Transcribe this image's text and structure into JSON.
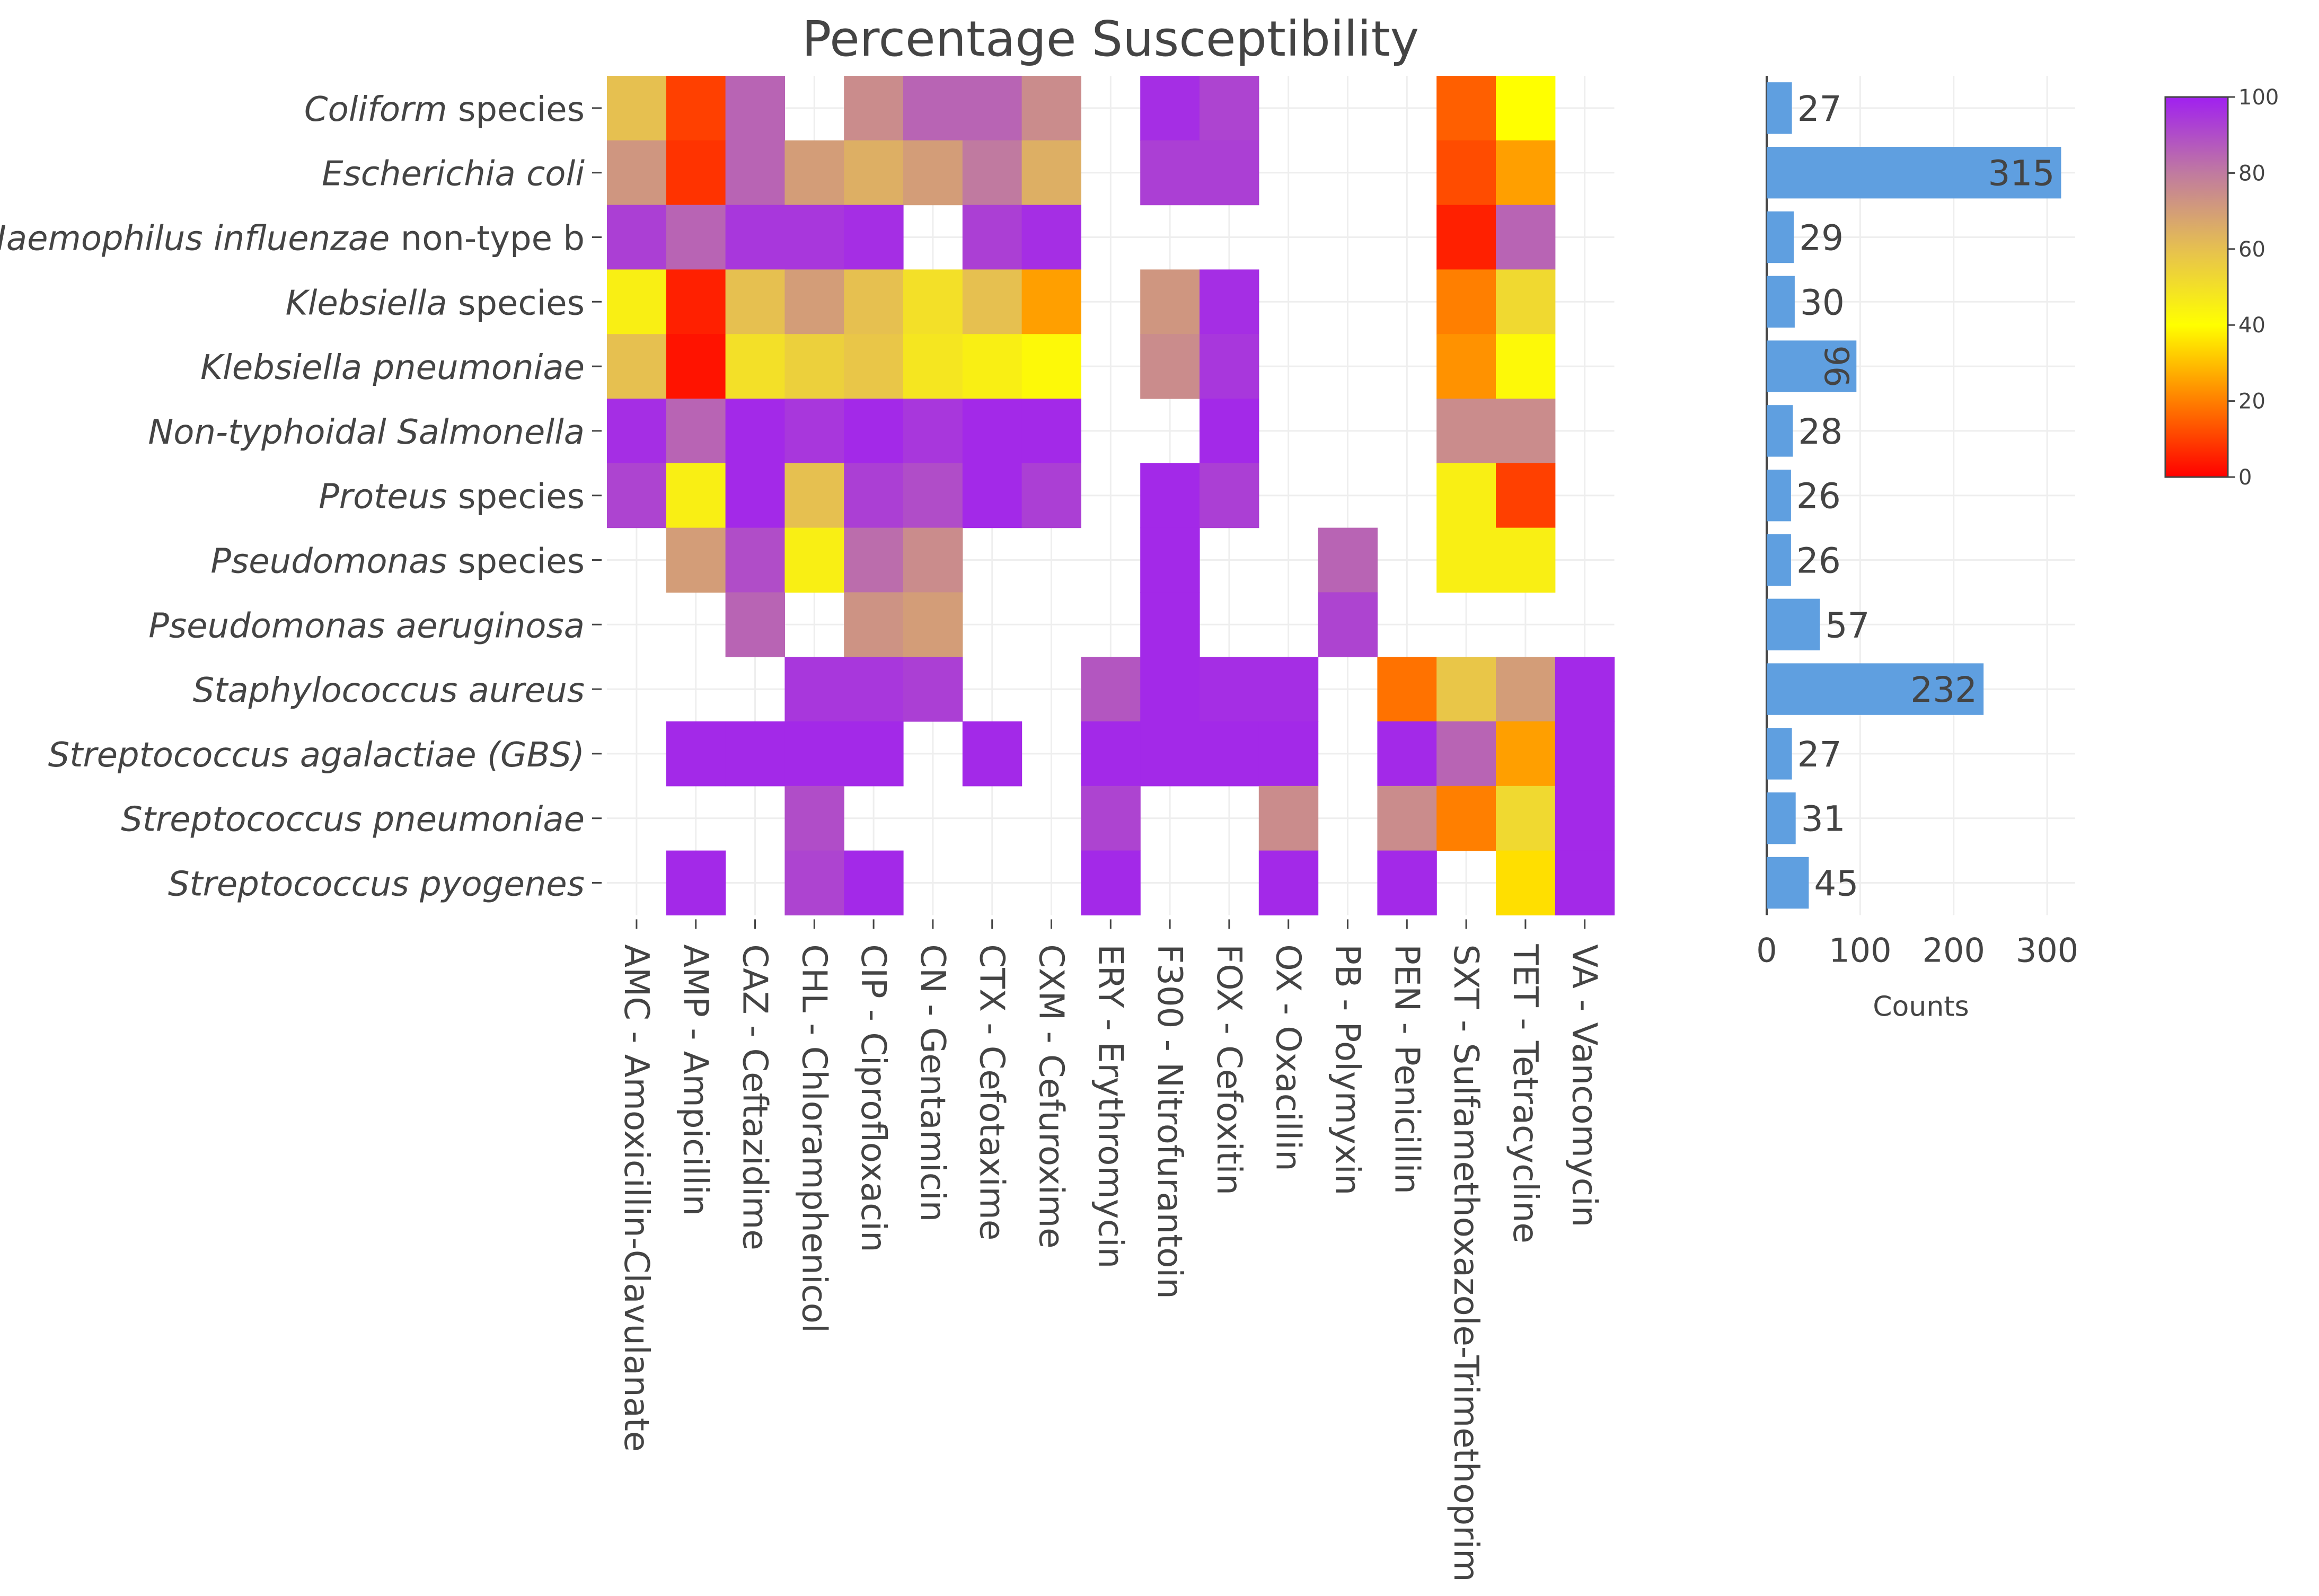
{
  "chart_data": [
    {
      "type": "heatmap",
      "title": "Percentage Susceptibility",
      "y_categories": [
        {
          "italic": "Coliform",
          "rest": " species"
        },
        {
          "italic": "Escherichia coli",
          "rest": ""
        },
        {
          "italic": "Haemophilus influenzae",
          "rest": " non-type b"
        },
        {
          "italic": "Klebsiella",
          "rest": " species"
        },
        {
          "italic": "Klebsiella pneumoniae",
          "rest": ""
        },
        {
          "italic": "Non-typhoidal Salmonella",
          "rest": ""
        },
        {
          "italic": "Proteus",
          "rest": " species"
        },
        {
          "italic": "Pseudomonas",
          "rest": " species"
        },
        {
          "italic": "Pseudomonas aeruginosa",
          "rest": ""
        },
        {
          "italic": "Staphylococcus aureus",
          "rest": ""
        },
        {
          "italic": "Streptococcus agalactiae (GBS)",
          "rest": ""
        },
        {
          "italic": "Streptococcus pneumoniae",
          "rest": ""
        },
        {
          "italic": "Streptococcus pyogenes",
          "rest": ""
        }
      ],
      "x_categories": [
        "AMC - Amoxicillin-Clavulanate",
        "AMP - Ampicillin",
        "CAZ - Ceftazidime",
        "CHL - Chloramphenicol",
        "CIP - Ciprofloxacin",
        "CN - Gentamicin",
        "CTX - Cefotaxime",
        "CXM - Cefuroxime",
        "ERY - Erythromycin",
        "F300 - Nitrofurantoin",
        "FOX - Cefoxitin",
        "OX - Oxacillin",
        "PB - Polymyxin",
        "PEN - Penicillin",
        "SXT - Sulfamethoxazole-Trimethoprim",
        "TET - Tetracycline",
        "VA - Vancomycin"
      ],
      "values": [
        [
          60,
          10,
          85,
          null,
          75,
          85,
          85,
          75,
          null,
          97,
          92,
          null,
          null,
          null,
          15,
          40,
          null
        ],
        [
          72,
          8,
          85,
          70,
          65,
          70,
          80,
          65,
          null,
          93,
          93,
          null,
          null,
          null,
          12,
          25,
          null
        ],
        [
          93,
          85,
          95,
          95,
          97,
          null,
          93,
          97,
          null,
          null,
          null,
          null,
          null,
          null,
          5,
          85,
          null
        ],
        [
          45,
          5,
          60,
          70,
          60,
          50,
          60,
          25,
          null,
          72,
          97,
          null,
          null,
          null,
          20,
          52,
          null
        ],
        [
          60,
          3,
          50,
          55,
          58,
          48,
          45,
          42,
          null,
          75,
          95,
          null,
          null,
          null,
          23,
          42,
          null
        ],
        [
          97,
          85,
          98,
          95,
          98,
          95,
          98,
          98,
          null,
          null,
          98,
          null,
          null,
          null,
          75,
          75,
          null
        ],
        [
          92,
          45,
          98,
          60,
          93,
          90,
          98,
          93,
          null,
          98,
          93,
          null,
          null,
          null,
          45,
          10,
          null
        ],
        [
          null,
          70,
          90,
          45,
          83,
          75,
          null,
          null,
          null,
          98,
          null,
          null,
          85,
          null,
          45,
          45,
          null
        ],
        [
          null,
          null,
          85,
          null,
          73,
          70,
          null,
          null,
          null,
          98,
          null,
          null,
          92,
          null,
          null,
          null,
          null
        ],
        [
          null,
          null,
          null,
          95,
          95,
          93,
          null,
          null,
          88,
          98,
          97,
          97,
          null,
          18,
          58,
          70,
          98
        ],
        [
          null,
          98,
          98,
          98,
          98,
          null,
          98,
          null,
          98,
          98,
          98,
          98,
          null,
          98,
          85,
          25,
          98
        ],
        [
          null,
          null,
          null,
          90,
          null,
          null,
          null,
          null,
          92,
          null,
          null,
          75,
          null,
          75,
          20,
          52,
          98
        ],
        [
          null,
          98,
          null,
          92,
          98,
          null,
          null,
          null,
          98,
          null,
          null,
          98,
          null,
          98,
          null,
          35,
          98
        ]
      ],
      "colorscale": [
        [
          0,
          "#ff0000"
        ],
        [
          0.2,
          "#ff7f00"
        ],
        [
          0.4,
          "#ffff00"
        ],
        [
          0.6,
          "#e6c050"
        ],
        [
          0.8,
          "#c07aa0"
        ],
        [
          1.0,
          "#a020f0"
        ]
      ],
      "colorbar": {
        "range": [
          0,
          100
        ],
        "ticks": [
          0,
          20,
          40,
          60,
          80,
          100
        ]
      }
    },
    {
      "type": "bar",
      "orientation": "horizontal",
      "values": [
        27,
        315,
        29,
        30,
        96,
        28,
        26,
        26,
        57,
        232,
        27,
        31,
        45
      ],
      "labels": [
        "27",
        "315",
        "29",
        "30",
        "96",
        "28",
        "26",
        "26",
        "57",
        "232",
        "27",
        "31",
        "45"
      ],
      "xlabel": "Counts",
      "x_ticks": [
        0,
        100,
        200,
        300
      ],
      "xlim": [
        0,
        330
      ],
      "color": "#5f9fe0"
    }
  ]
}
